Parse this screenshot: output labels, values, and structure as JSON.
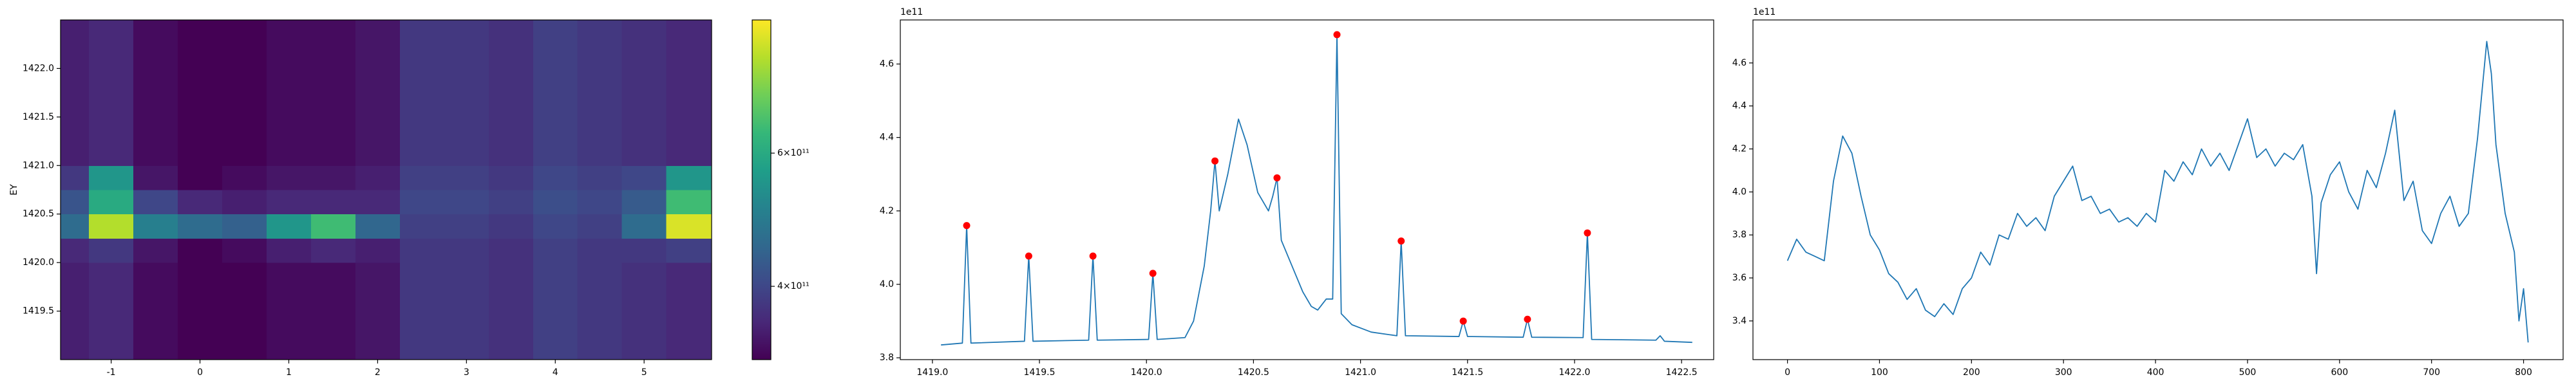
{
  "chart_data": [
    {
      "type": "heatmap",
      "y_label": "EY",
      "cmap": "viridis",
      "x_edges": [
        -1.57,
        -1.25,
        -0.75,
        -0.25,
        0.25,
        0.75,
        1.25,
        1.75,
        2.25,
        2.75,
        3.25,
        3.75,
        4.25,
        4.75,
        5.25,
        5.76
      ],
      "y_edges": [
        1419.0,
        1419.25,
        1419.5,
        1419.75,
        1420.0,
        1420.25,
        1420.5,
        1420.75,
        1421.0,
        1421.25,
        1421.5,
        1421.75,
        1422.0,
        1422.25,
        1422.5
      ],
      "z": [
        [
          350000000000.0,
          360000000000.0,
          330000000000.0,
          310000000000.0,
          320000000000.0,
          330000000000.0,
          330000000000.0,
          340000000000.0,
          380000000000.0,
          380000000000.0,
          370000000000.0,
          390000000000.0,
          380000000000.0,
          370000000000.0,
          360000000000.0
        ],
        [
          350000000000.0,
          360000000000.0,
          330000000000.0,
          310000000000.0,
          320000000000.0,
          330000000000.0,
          330000000000.0,
          340000000000.0,
          380000000000.0,
          380000000000.0,
          370000000000.0,
          390000000000.0,
          380000000000.0,
          370000000000.0,
          360000000000.0
        ],
        [
          350000000000.0,
          360000000000.0,
          330000000000.0,
          310000000000.0,
          320000000000.0,
          330000000000.0,
          330000000000.0,
          340000000000.0,
          380000000000.0,
          380000000000.0,
          370000000000.0,
          390000000000.0,
          380000000000.0,
          370000000000.0,
          360000000000.0
        ],
        [
          350000000000.0,
          360000000000.0,
          330000000000.0,
          310000000000.0,
          320000000000.0,
          330000000000.0,
          330000000000.0,
          340000000000.0,
          380000000000.0,
          380000000000.0,
          370000000000.0,
          390000000000.0,
          380000000000.0,
          370000000000.0,
          360000000000.0
        ],
        [
          360000000000.0,
          380000000000.0,
          340000000000.0,
          320000000000.0,
          330000000000.0,
          350000000000.0,
          360000000000.0,
          350000000000.0,
          380000000000.0,
          380000000000.0,
          370000000000.0,
          390000000000.0,
          380000000000.0,
          380000000000.0,
          390000000000.0
        ],
        [
          460000000000.0,
          800000000000.0,
          500000000000.0,
          460000000000.0,
          440000000000.0,
          550000000000.0,
          650000000000.0,
          450000000000.0,
          390000000000.0,
          390000000000.0,
          380000000000.0,
          400000000000.0,
          390000000000.0,
          460000000000.0,
          850000000000.0
        ],
        [
          420000000000.0,
          600000000000.0,
          400000000000.0,
          360000000000.0,
          350000000000.0,
          360000000000.0,
          360000000000.0,
          360000000000.0,
          400000000000.0,
          400000000000.0,
          390000000000.0,
          410000000000.0,
          400000000000.0,
          430000000000.0,
          650000000000.0
        ],
        [
          380000000000.0,
          550000000000.0,
          340000000000.0,
          320000000000.0,
          330000000000.0,
          340000000000.0,
          340000000000.0,
          350000000000.0,
          390000000000.0,
          390000000000.0,
          380000000000.0,
          400000000000.0,
          390000000000.0,
          400000000000.0,
          550000000000.0
        ],
        [
          350000000000.0,
          360000000000.0,
          330000000000.0,
          310000000000.0,
          320000000000.0,
          330000000000.0,
          330000000000.0,
          340000000000.0,
          380000000000.0,
          380000000000.0,
          370000000000.0,
          390000000000.0,
          380000000000.0,
          370000000000.0,
          360000000000.0
        ],
        [
          350000000000.0,
          360000000000.0,
          330000000000.0,
          310000000000.0,
          320000000000.0,
          330000000000.0,
          330000000000.0,
          340000000000.0,
          380000000000.0,
          380000000000.0,
          370000000000.0,
          390000000000.0,
          380000000000.0,
          370000000000.0,
          360000000000.0
        ],
        [
          350000000000.0,
          360000000000.0,
          330000000000.0,
          310000000000.0,
          320000000000.0,
          330000000000.0,
          330000000000.0,
          340000000000.0,
          380000000000.0,
          380000000000.0,
          370000000000.0,
          390000000000.0,
          380000000000.0,
          370000000000.0,
          360000000000.0
        ],
        [
          350000000000.0,
          360000000000.0,
          330000000000.0,
          310000000000.0,
          320000000000.0,
          330000000000.0,
          330000000000.0,
          340000000000.0,
          380000000000.0,
          380000000000.0,
          370000000000.0,
          390000000000.0,
          380000000000.0,
          370000000000.0,
          360000000000.0
        ],
        [
          350000000000.0,
          360000000000.0,
          330000000000.0,
          310000000000.0,
          320000000000.0,
          330000000000.0,
          330000000000.0,
          340000000000.0,
          380000000000.0,
          380000000000.0,
          370000000000.0,
          390000000000.0,
          380000000000.0,
          370000000000.0,
          360000000000.0
        ],
        [
          350000000000.0,
          360000000000.0,
          330000000000.0,
          310000000000.0,
          320000000000.0,
          330000000000.0,
          330000000000.0,
          340000000000.0,
          380000000000.0,
          380000000000.0,
          370000000000.0,
          390000000000.0,
          380000000000.0,
          370000000000.0,
          360000000000.0
        ]
      ],
      "xlim": [
        -1.57,
        5.76
      ],
      "ylim": [
        1419.0,
        1422.5
      ],
      "xticks": [
        -1,
        0,
        1,
        2,
        3,
        4,
        5
      ],
      "yticks": [
        1419.5,
        {
          "value": 1420,
          "label": "1420.0"
        },
        1420.5,
        {
          "value": 1421,
          "label": "1421.0"
        },
        1421.5,
        {
          "value": 1422,
          "label": "1422.0"
        }
      ],
      "colorbar": {
        "log": true,
        "clim": [
          320000000000.0,
          900000000000.0
        ],
        "ticks": [
          {
            "value": 400000000000.0,
            "label": "4×10¹¹"
          },
          {
            "value": 600000000000.0,
            "label": "6×10¹¹"
          }
        ]
      }
    },
    {
      "type": "line",
      "y_offset_label": "1e11",
      "series": [
        {
          "kind": "line",
          "color": "#1f77b4",
          "x": [
            1419.04,
            1419.14,
            1419.16,
            1419.18,
            1419.43,
            1419.45,
            1419.47,
            1419.73,
            1419.75,
            1419.77,
            1420.01,
            1420.03,
            1420.05,
            1420.18,
            1420.22,
            1420.27,
            1420.3,
            1420.32,
            1420.34,
            1420.38,
            1420.43,
            1420.47,
            1420.52,
            1420.57,
            1420.59,
            1420.61,
            1420.63,
            1420.68,
            1420.73,
            1420.77,
            1420.8,
            1420.84,
            1420.87,
            1420.89,
            1420.91,
            1420.96,
            1421.05,
            1421.17,
            1421.19,
            1421.21,
            1421.46,
            1421.48,
            1421.5,
            1421.76,
            1421.78,
            1421.8,
            1422.04,
            1422.06,
            1422.08,
            1422.38,
            1422.4,
            1422.42,
            1422.55
          ],
          "values": [
            3.835,
            3.84,
            4.16,
            3.84,
            3.845,
            4.077,
            3.845,
            3.848,
            4.077,
            3.848,
            3.85,
            4.03,
            3.85,
            3.855,
            3.9,
            4.05,
            4.2,
            4.336,
            4.2,
            4.3,
            4.45,
            4.38,
            4.25,
            4.2,
            4.24,
            4.29,
            4.12,
            4.05,
            3.98,
            3.94,
            3.93,
            3.96,
            3.96,
            4.68,
            3.92,
            3.89,
            3.87,
            3.86,
            4.118,
            3.86,
            3.858,
            3.9,
            3.858,
            3.856,
            3.905,
            3.856,
            3.855,
            4.14,
            3.85,
            3.848,
            3.86,
            3.845,
            3.842
          ]
        },
        {
          "kind": "scatter",
          "color": "#ff0000",
          "x": [
            1419.16,
            1419.45,
            1419.75,
            1420.03,
            1420.32,
            1420.61,
            1420.89,
            1421.19,
            1421.48,
            1421.78,
            1422.06
          ],
          "values": [
            4.16,
            4.077,
            4.077,
            4.03,
            4.336,
            4.29,
            4.68,
            4.118,
            3.9,
            3.905,
            4.14
          ]
        }
      ],
      "xlim": [
        1418.85,
        1422.65
      ],
      "ylim": [
        3.795,
        4.72
      ],
      "xticks": [
        {
          "value": 1419,
          "label": "1419.0"
        },
        1419.5,
        {
          "value": 1420,
          "label": "1420.0"
        },
        1420.5,
        {
          "value": 1421,
          "label": "1421.0"
        },
        1421.5,
        {
          "value": 1422,
          "label": "1422.0"
        },
        1422.5
      ],
      "yticks": [
        3.8,
        {
          "value": 4,
          "label": "4.0"
        },
        4.2,
        4.4,
        4.6
      ]
    },
    {
      "type": "line",
      "y_offset_label": "1e11",
      "series": [
        {
          "kind": "line",
          "color": "#1f77b4",
          "x": [
            0,
            10,
            20,
            30,
            40,
            50,
            60,
            70,
            80,
            90,
            100,
            110,
            120,
            130,
            140,
            150,
            160,
            170,
            180,
            190,
            200,
            210,
            220,
            230,
            240,
            250,
            260,
            270,
            280,
            290,
            300,
            310,
            320,
            330,
            340,
            350,
            360,
            370,
            380,
            390,
            400,
            410,
            420,
            430,
            440,
            450,
            460,
            470,
            480,
            490,
            500,
            510,
            520,
            530,
            540,
            550,
            560,
            570,
            575,
            580,
            590,
            600,
            610,
            620,
            630,
            640,
            650,
            660,
            670,
            680,
            690,
            700,
            710,
            720,
            730,
            740,
            750,
            760,
            765,
            770,
            780,
            790,
            795,
            800,
            805
          ],
          "values": [
            3.68,
            3.78,
            3.72,
            3.7,
            3.68,
            4.05,
            4.26,
            4.18,
            3.98,
            3.8,
            3.73,
            3.62,
            3.58,
            3.5,
            3.55,
            3.45,
            3.42,
            3.48,
            3.43,
            3.55,
            3.6,
            3.72,
            3.66,
            3.8,
            3.78,
            3.9,
            3.84,
            3.88,
            3.82,
            3.98,
            4.05,
            4.12,
            3.96,
            3.98,
            3.9,
            3.92,
            3.86,
            3.88,
            3.84,
            3.9,
            3.86,
            4.1,
            4.05,
            4.14,
            4.08,
            4.2,
            4.12,
            4.18,
            4.1,
            4.22,
            4.34,
            4.16,
            4.2,
            4.12,
            4.18,
            4.15,
            4.22,
            3.98,
            3.62,
            3.95,
            4.08,
            4.14,
            4.0,
            3.92,
            4.1,
            4.02,
            4.18,
            4.38,
            3.96,
            4.05,
            3.82,
            3.76,
            3.9,
            3.98,
            3.84,
            3.9,
            4.25,
            4.7,
            4.55,
            4.22,
            3.9,
            3.72,
            3.4,
            3.55,
            3.3
          ]
        }
      ],
      "xlim": [
        -37.5,
        843
      ],
      "ylim": [
        3.22,
        4.8
      ],
      "xticks": [
        0,
        100,
        200,
        300,
        400,
        500,
        600,
        700,
        800
      ],
      "yticks": [
        3.4,
        3.6,
        3.8,
        {
          "value": 4,
          "label": "4.0"
        },
        4.2,
        4.4,
        4.6
      ]
    }
  ]
}
